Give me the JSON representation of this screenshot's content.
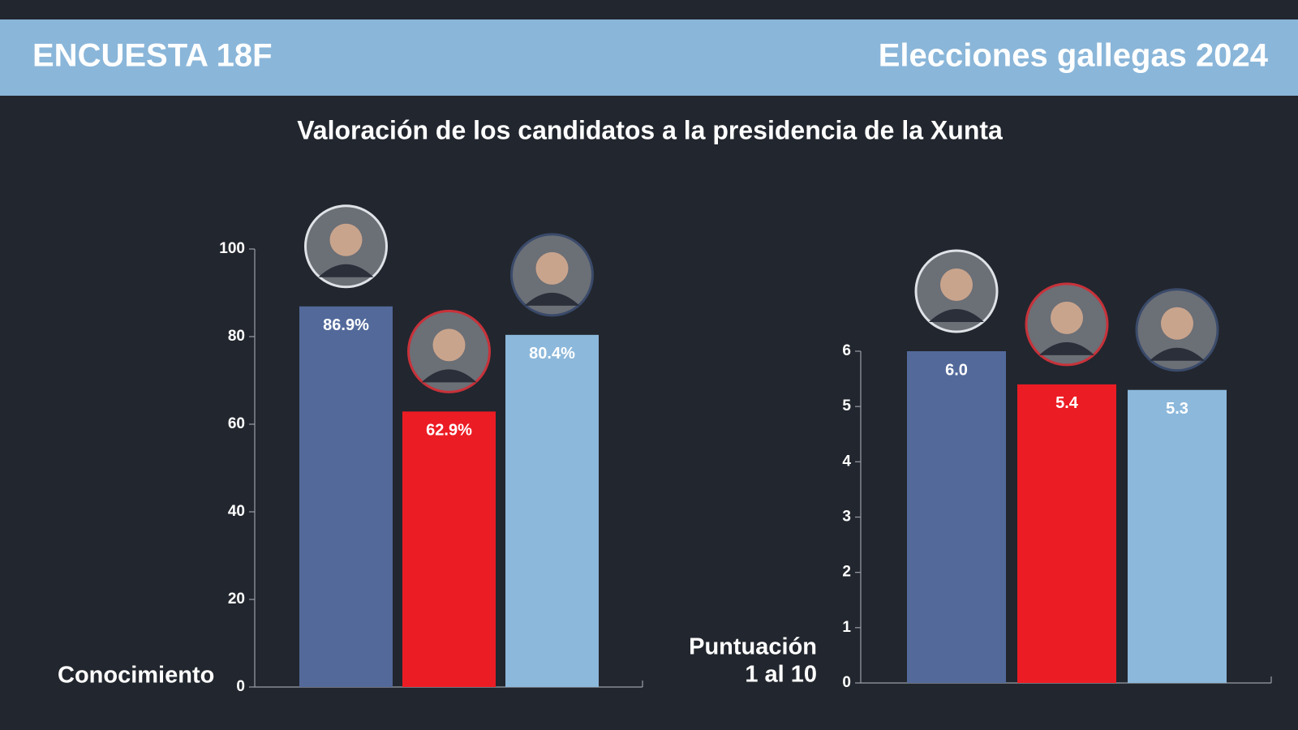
{
  "header": {
    "left": "ENCUESTA 18F",
    "right": "Elecciones gallegas 2024"
  },
  "title": "Valoración de los candidatos a la presidencia de la Xunta",
  "chart_data": [
    {
      "type": "bar",
      "y_label": [
        "Conocimiento"
      ],
      "categories": [
        null,
        null,
        null
      ],
      "values": [
        86.9,
        62.9,
        80.4
      ],
      "value_labels": [
        "86.9%",
        "62.9%",
        "80.4%"
      ],
      "colors": [
        "#52699a",
        "#ec1c24",
        "#8cb8db"
      ],
      "ylim": [
        0,
        100
      ],
      "yticks": [
        0,
        20,
        40,
        60,
        80,
        100
      ]
    },
    {
      "type": "bar",
      "y_label": [
        "Puntuación",
        "1 al 10"
      ],
      "categories": [
        null,
        null,
        null
      ],
      "values": [
        6,
        5.4,
        5.3
      ],
      "value_labels": [
        "6.0",
        "5.4",
        "5.3"
      ],
      "colors": [
        "#52699a",
        "#ec1c24",
        "#8cb8db"
      ],
      "ylim": [
        0,
        6
      ],
      "yticks": [
        0,
        1,
        2,
        3,
        4,
        5,
        6
      ]
    }
  ]
}
